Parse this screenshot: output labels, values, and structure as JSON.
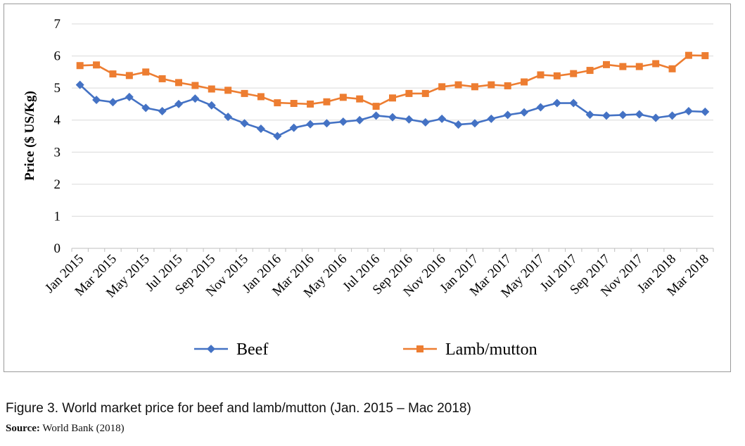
{
  "figure": {
    "caption": "Figure 3. World market price for beef and lamb/mutton (Jan. 2015 – Mac 2018)",
    "source_label": "Source:",
    "source_text": "World Bank (2018)"
  },
  "chart_data": {
    "type": "line",
    "title": "",
    "xlabel": "",
    "ylabel": "Price ($ US/Kg)",
    "ylim": [
      0,
      7
    ],
    "yticks": [
      0,
      1,
      2,
      3,
      4,
      5,
      6,
      7
    ],
    "grid": true,
    "legend_position": "bottom",
    "x": [
      "Jan 2015",
      "Feb 2015",
      "Mar 2015",
      "Apr 2015",
      "May 2015",
      "Jun 2015",
      "Jul 2015",
      "Aug 2015",
      "Sep 2015",
      "Oct 2015",
      "Nov 2015",
      "Dec 2015",
      "Jan 2016",
      "Feb 2016",
      "Mar 2016",
      "Apr 2016",
      "May 2016",
      "Jun 2016",
      "Jul 2016",
      "Aug 2016",
      "Sep 2016",
      "Oct 2016",
      "Nov 2016",
      "Dec 2016",
      "Jan 2017",
      "Feb 2017",
      "Mar 2017",
      "Apr 2017",
      "May 2017",
      "Jun 2017",
      "Jul 2017",
      "Aug 2017",
      "Sep 2017",
      "Oct 2017",
      "Nov 2017",
      "Dec 2017",
      "Jan 2018",
      "Feb 2018",
      "Mar 2018"
    ],
    "x_tick_labels": [
      "Jan 2015",
      "Mar 2015",
      "May 2015",
      "Jul 2015",
      "Sep 2015",
      "Nov 2015",
      "Jan 2016",
      "Mar 2016",
      "May 2016",
      "Jul 2016",
      "Sep 2016",
      "Nov 2016",
      "Jan 2017",
      "Mar 2017",
      "May 2017",
      "Jul 2017",
      "Sep 2017",
      "Nov 2017",
      "Jan 2018",
      "Mar 2018"
    ],
    "series": [
      {
        "name": "Beef",
        "color": "#4472C4",
        "marker": "diamond",
        "values": [
          5.1,
          4.63,
          4.56,
          4.72,
          4.38,
          4.28,
          4.5,
          4.67,
          4.46,
          4.1,
          3.9,
          3.73,
          3.5,
          3.76,
          3.87,
          3.9,
          3.95,
          4.0,
          4.14,
          4.09,
          4.02,
          3.93,
          4.04,
          3.86,
          3.9,
          4.04,
          4.16,
          4.24,
          4.4,
          4.53,
          4.53,
          4.17,
          4.14,
          4.16,
          4.18,
          4.07,
          4.14,
          4.28,
          4.26
        ]
      },
      {
        "name": "Lamb/mutton",
        "color": "#ED7D31",
        "marker": "square",
        "values": [
          5.7,
          5.72,
          5.44,
          5.39,
          5.5,
          5.29,
          5.17,
          5.08,
          4.97,
          4.93,
          4.83,
          4.73,
          4.54,
          4.52,
          4.5,
          4.57,
          4.71,
          4.66,
          4.43,
          4.69,
          4.83,
          4.83,
          5.04,
          5.1,
          5.04,
          5.1,
          5.07,
          5.19,
          5.41,
          5.38,
          5.45,
          5.55,
          5.73,
          5.67,
          5.67,
          5.76,
          5.6,
          6.02,
          6.01
        ]
      }
    ]
  }
}
